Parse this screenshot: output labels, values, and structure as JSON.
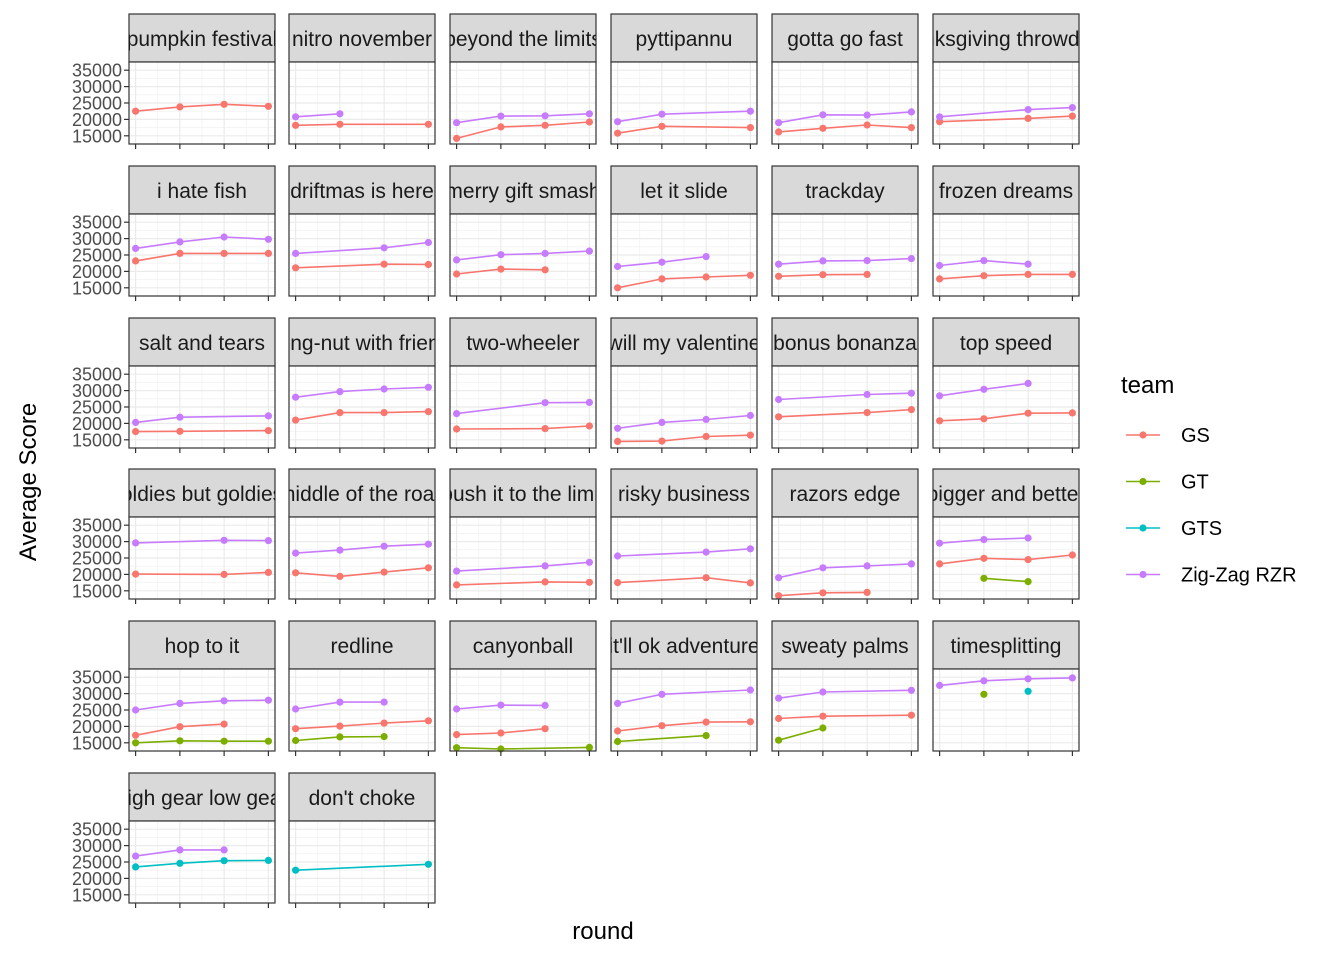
{
  "chart_data": {
    "type": "line",
    "layout": "faceted small multiples (6 columns)",
    "xlabel": "round",
    "ylabel": "Average Score",
    "ylim": [
      12500,
      37500
    ],
    "yticks": [
      15000,
      20000,
      25000,
      30000,
      35000
    ],
    "x_rounds": [
      1,
      2,
      3,
      4
    ],
    "x_tick_labels_shown": false,
    "grid": true,
    "legend": {
      "title": "team",
      "placement": "right",
      "entries": [
        {
          "name": "GS",
          "color": "#F8766D"
        },
        {
          "name": "GT",
          "color": "#7CAE00"
        },
        {
          "name": "GTS",
          "color": "#00BFC4"
        },
        {
          "name": "Zig-Zag RZR",
          "color": "#C77CFF"
        }
      ]
    },
    "facets": [
      {
        "title": "pumpkin festival",
        "series": [
          {
            "team": "GS",
            "values": [
              22500,
              23800,
              24600,
              24000
            ]
          }
        ]
      },
      {
        "title": "nitro november",
        "series": [
          {
            "team": "GS",
            "values": [
              18200,
              18500,
              null,
              18500
            ]
          },
          {
            "team": "Zig-Zag RZR",
            "values": [
              20800,
              21700,
              null,
              null
            ]
          }
        ]
      },
      {
        "title": "beyond the limits",
        "series": [
          {
            "team": "GS",
            "values": [
              14200,
              17700,
              18200,
              19200
            ]
          },
          {
            "team": "Zig-Zag RZR",
            "values": [
              19000,
              21000,
              21100,
              21700
            ]
          }
        ]
      },
      {
        "title": "pyttipannu",
        "series": [
          {
            "team": "GS",
            "values": [
              15800,
              17900,
              null,
              17500
            ]
          },
          {
            "team": "Zig-Zag RZR",
            "values": [
              19300,
              21600,
              null,
              22500
            ]
          }
        ]
      },
      {
        "title": "gotta go fast",
        "series": [
          {
            "team": "GS",
            "values": [
              16200,
              17300,
              18300,
              17500
            ]
          },
          {
            "team": "Zig-Zag RZR",
            "values": [
              19000,
              21400,
              21300,
              22300
            ]
          }
        ]
      },
      {
        "title": "thanksgiving throwdown",
        "series": [
          {
            "team": "GS",
            "values": [
              19300,
              null,
              20300,
              21000
            ]
          },
          {
            "team": "Zig-Zag RZR",
            "values": [
              20800,
              null,
              23000,
              23600
            ]
          }
        ]
      },
      {
        "title": "i hate fish",
        "series": [
          {
            "team": "GS",
            "values": [
              23200,
              25500,
              25500,
              25500
            ]
          },
          {
            "team": "Zig-Zag RZR",
            "values": [
              27000,
              29000,
              30500,
              29800
            ]
          }
        ]
      },
      {
        "title": "driftmas is here",
        "series": [
          {
            "team": "GS",
            "values": [
              21100,
              null,
              22200,
              22100
            ]
          },
          {
            "team": "Zig-Zag RZR",
            "values": [
              25500,
              null,
              27200,
              28800
            ]
          }
        ]
      },
      {
        "title": "merry gift smash",
        "series": [
          {
            "team": "GS",
            "values": [
              19200,
              20700,
              20500,
              null
            ]
          },
          {
            "team": "Zig-Zag RZR",
            "values": [
              23500,
              25100,
              25500,
              26200
            ]
          }
        ]
      },
      {
        "title": "let it slide",
        "series": [
          {
            "team": "GS",
            "values": [
              15000,
              17700,
              18300,
              18800
            ]
          },
          {
            "team": "Zig-Zag RZR",
            "values": [
              21500,
              22800,
              24500,
              null
            ]
          }
        ]
      },
      {
        "title": "trackday",
        "series": [
          {
            "team": "GS",
            "values": [
              18500,
              19000,
              19100,
              null
            ]
          },
          {
            "team": "Zig-Zag RZR",
            "values": [
              22200,
              23200,
              23300,
              23900
            ]
          }
        ]
      },
      {
        "title": "frozen dreams",
        "series": [
          {
            "team": "GS",
            "values": [
              17700,
              18700,
              19100,
              19100
            ]
          },
          {
            "team": "Zig-Zag RZR",
            "values": [
              21800,
              23300,
              22200,
              null
            ]
          }
        ]
      },
      {
        "title": "salt and tears",
        "series": [
          {
            "team": "GS",
            "values": [
              17500,
              17600,
              null,
              17800
            ]
          },
          {
            "team": "Zig-Zag RZR",
            "values": [
              20300,
              21900,
              null,
              22300
            ]
          }
        ]
      },
      {
        "title": "going-nut with friends",
        "series": [
          {
            "team": "GS",
            "values": [
              21000,
              23300,
              23300,
              23600
            ]
          },
          {
            "team": "Zig-Zag RZR",
            "values": [
              28000,
              29700,
              30500,
              31000
            ]
          }
        ]
      },
      {
        "title": "two-wheeler",
        "series": [
          {
            "team": "GS",
            "values": [
              18300,
              null,
              18400,
              19200
            ]
          },
          {
            "team": "Zig-Zag RZR",
            "values": [
              23000,
              null,
              26300,
              26400
            ]
          }
        ]
      },
      {
        "title": "will my valentine",
        "series": [
          {
            "team": "GS",
            "values": [
              14500,
              14600,
              16000,
              16400
            ]
          },
          {
            "team": "Zig-Zag RZR",
            "values": [
              18500,
              20300,
              21200,
              22400
            ]
          }
        ]
      },
      {
        "title": "bonus bonanza",
        "series": [
          {
            "team": "GS",
            "values": [
              22000,
              null,
              23300,
              24200
            ]
          },
          {
            "team": "Zig-Zag RZR",
            "values": [
              27300,
              null,
              28800,
              29200
            ]
          }
        ]
      },
      {
        "title": "top speed",
        "series": [
          {
            "team": "GS",
            "values": [
              20800,
              21400,
              23100,
              23200
            ]
          },
          {
            "team": "Zig-Zag RZR",
            "values": [
              28400,
              30400,
              32200,
              null
            ]
          }
        ]
      },
      {
        "title": "oldies but goldies",
        "series": [
          {
            "team": "GS",
            "values": [
              20100,
              null,
              20000,
              20600
            ]
          },
          {
            "team": "Zig-Zag RZR",
            "values": [
              29600,
              null,
              30400,
              30300
            ]
          }
        ]
      },
      {
        "title": "middle of the road",
        "series": [
          {
            "team": "GS",
            "values": [
              20500,
              19400,
              20700,
              22000
            ]
          },
          {
            "team": "Zig-Zag RZR",
            "values": [
              26500,
              27400,
              28600,
              29200
            ]
          }
        ]
      },
      {
        "title": "push it to the limit",
        "series": [
          {
            "team": "GS",
            "values": [
              16800,
              null,
              17700,
              17600
            ]
          },
          {
            "team": "Zig-Zag RZR",
            "values": [
              21000,
              null,
              22600,
              23700
            ]
          }
        ]
      },
      {
        "title": "risky business",
        "series": [
          {
            "team": "GS",
            "values": [
              17500,
              null,
              19000,
              17400
            ]
          },
          {
            "team": "Zig-Zag RZR",
            "values": [
              25600,
              null,
              26800,
              27800
            ]
          }
        ]
      },
      {
        "title": "razors edge",
        "series": [
          {
            "team": "GS",
            "values": [
              13500,
              14400,
              14500,
              null
            ]
          },
          {
            "team": "Zig-Zag RZR",
            "values": [
              19000,
              22000,
              22600,
              23200
            ]
          }
        ]
      },
      {
        "title": "bigger and better",
        "series": [
          {
            "team": "GS",
            "values": [
              23200,
              24900,
              24500,
              25900
            ]
          },
          {
            "team": "GT",
            "values": [
              null,
              18800,
              17800,
              null
            ]
          },
          {
            "team": "Zig-Zag RZR",
            "values": [
              29500,
              30600,
              31100,
              null
            ]
          }
        ]
      },
      {
        "title": "hop to it",
        "series": [
          {
            "team": "GS",
            "values": [
              17300,
              19900,
              20700,
              null
            ]
          },
          {
            "team": "GT",
            "values": [
              15000,
              15600,
              15500,
              15500
            ]
          },
          {
            "team": "Zig-Zag RZR",
            "values": [
              25000,
              27000,
              27800,
              28000
            ]
          }
        ]
      },
      {
        "title": "redline",
        "series": [
          {
            "team": "GS",
            "values": [
              19300,
              20100,
              21000,
              21700
            ]
          },
          {
            "team": "GT",
            "values": [
              15700,
              16800,
              16900,
              null
            ]
          },
          {
            "team": "Zig-Zag RZR",
            "values": [
              25300,
              27400,
              27400,
              null
            ]
          }
        ]
      },
      {
        "title": "canyonball",
        "series": [
          {
            "team": "GS",
            "values": [
              17500,
              18000,
              19300,
              null
            ]
          },
          {
            "team": "GT",
            "values": [
              13500,
              13100,
              null,
              13600
            ]
          },
          {
            "team": "Zig-Zag RZR",
            "values": [
              25300,
              26500,
              26400,
              null
            ]
          }
        ]
      },
      {
        "title": "it'll ok adventure",
        "series": [
          {
            "team": "GS",
            "values": [
              18600,
              20200,
              21300,
              21400
            ]
          },
          {
            "team": "GT",
            "values": [
              15400,
              null,
              17200,
              null
            ]
          },
          {
            "team": "Zig-Zag RZR",
            "values": [
              27000,
              29800,
              null,
              31100
            ]
          }
        ]
      },
      {
        "title": "sweaty palms",
        "series": [
          {
            "team": "GS",
            "values": [
              22400,
              23100,
              null,
              23400
            ]
          },
          {
            "team": "GT",
            "values": [
              15800,
              19500,
              null,
              null
            ]
          },
          {
            "team": "Zig-Zag RZR",
            "values": [
              28600,
              30500,
              null,
              31000
            ]
          }
        ]
      },
      {
        "title": "timesplitting",
        "series": [
          {
            "team": "GT",
            "values": [
              null,
              29800,
              null,
              null
            ]
          },
          {
            "team": "GTS",
            "values": [
              null,
              null,
              30700,
              null
            ]
          },
          {
            "team": "Zig-Zag RZR",
            "values": [
              32500,
              33900,
              34500,
              34800
            ]
          }
        ]
      },
      {
        "title": "high gear low gear",
        "series": [
          {
            "team": "GTS",
            "values": [
              23500,
              24600,
              25400,
              25500
            ]
          },
          {
            "team": "Zig-Zag RZR",
            "values": [
              26800,
              28700,
              28700,
              null
            ]
          }
        ]
      },
      {
        "title": "don't choke",
        "series": [
          {
            "team": "GTS",
            "values": [
              22500,
              null,
              null,
              24300
            ]
          }
        ]
      }
    ]
  }
}
